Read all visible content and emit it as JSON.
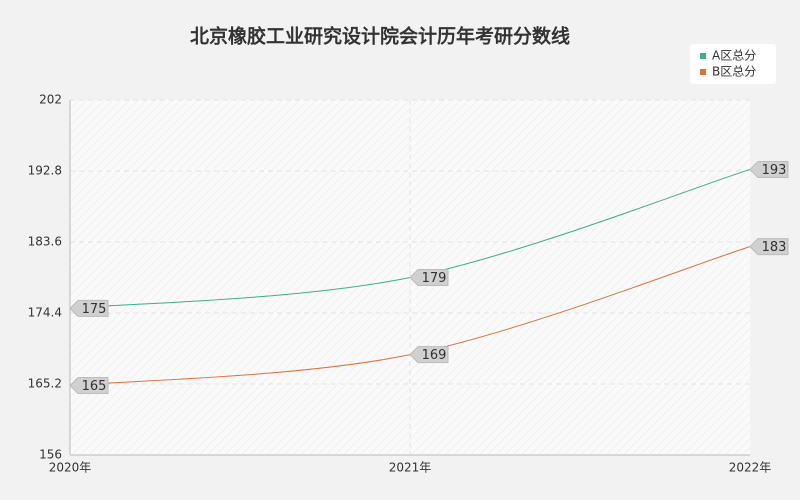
{
  "chart_data": {
    "type": "line",
    "title": "北京橡胶工业研究设计院会计历年考研分数线",
    "categories": [
      "2020年",
      "2021年",
      "2022年"
    ],
    "series": [
      {
        "name": "A区总分",
        "color": "#3aaf85",
        "values": [
          175,
          179,
          193
        ]
      },
      {
        "name": "B区总分",
        "color": "#e0703a",
        "values": [
          165,
          169,
          183
        ]
      }
    ],
    "ylim": [
      156,
      202
    ],
    "yticks": [
      156,
      165.2,
      174.4,
      183.6,
      192.8,
      202
    ],
    "grid": true,
    "legend": "top-right"
  }
}
